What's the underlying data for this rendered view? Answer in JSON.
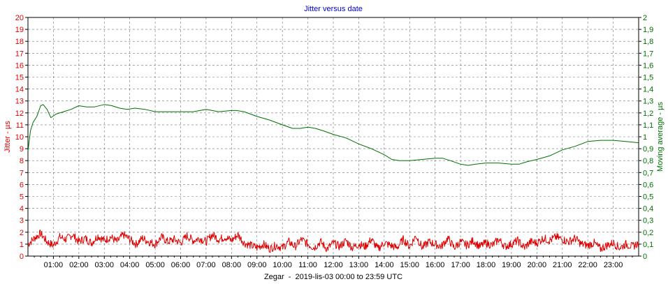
{
  "chart_data": {
    "type": "line",
    "title": "Jitter versus date",
    "xlabel": "Zegar  -  2019-lis-03 00:00 to 23:59 UTC",
    "ylabel_left": "Jitter - µs",
    "ylabel_right": "Moving average - µs",
    "x_ticks": [
      "01:00",
      "02:00",
      "03:00",
      "04:00",
      "05:00",
      "06:00",
      "07:00",
      "08:00",
      "09:00",
      "10:00",
      "11:00",
      "12:00",
      "13:00",
      "14:00",
      "15:00",
      "16:00",
      "17:00",
      "18:00",
      "19:00",
      "20:00",
      "21:00",
      "22:00",
      "23:00"
    ],
    "xlim_hours": [
      0,
      24
    ],
    "ylim_left": [
      0,
      20
    ],
    "ylim_right": [
      0,
      2
    ],
    "y_ticks_left": [
      "0",
      "1",
      "2",
      "3",
      "4",
      "5",
      "6",
      "7",
      "8",
      "9",
      "10",
      "11",
      "12",
      "13",
      "14",
      "15",
      "16",
      "17",
      "18",
      "19",
      "20"
    ],
    "y_ticks_right": [
      "0",
      "0,1",
      "0,2",
      "0,3",
      "0,4",
      "0,5",
      "0,6",
      "0,7",
      "0,8",
      "0,9",
      "1",
      "1,1",
      "1,2",
      "1,3",
      "1,4",
      "1,5",
      "1,6",
      "1,7",
      "1,8",
      "1,9",
      "2"
    ],
    "grid": true,
    "series": [
      {
        "name": "Jitter - µs",
        "axis": "left",
        "color": "#dd0000",
        "x_hours": [
          0,
          0.25,
          0.5,
          0.75,
          1,
          1.25,
          1.5,
          1.75,
          2,
          2.25,
          2.5,
          2.75,
          3,
          3.25,
          3.5,
          3.75,
          4,
          4.25,
          4.5,
          4.75,
          5,
          5.25,
          5.5,
          5.75,
          6,
          6.25,
          6.5,
          6.75,
          7,
          7.25,
          7.5,
          7.75,
          8,
          8.25,
          8.5,
          8.75,
          9,
          9.25,
          9.5,
          9.75,
          10,
          10.25,
          10.5,
          10.75,
          11,
          11.25,
          11.5,
          11.75,
          12,
          12.25,
          12.5,
          12.75,
          13,
          13.25,
          13.5,
          13.75,
          14,
          14.25,
          14.5,
          14.75,
          15,
          15.25,
          15.5,
          15.75,
          16,
          16.25,
          16.5,
          16.75,
          17,
          17.25,
          17.5,
          17.75,
          18,
          18.25,
          18.5,
          18.75,
          19,
          19.25,
          19.5,
          19.75,
          20,
          20.25,
          20.5,
          20.75,
          21,
          21.25,
          21.5,
          21.75,
          22,
          22.25,
          22.5,
          22.75,
          23,
          23.25,
          23.5,
          23.75,
          24
        ],
        "values": [
          1.0,
          1.5,
          1.9,
          1.2,
          0.9,
          1.6,
          1.4,
          1.8,
          1.2,
          1.5,
          1.1,
          1.7,
          1.3,
          1.6,
          1.2,
          1.8,
          1.4,
          1.0,
          1.5,
          1.2,
          1.0,
          1.6,
          1.2,
          1.4,
          1.1,
          1.7,
          1.3,
          1.5,
          1.2,
          1.8,
          1.4,
          1.6,
          1.3,
          1.8,
          1.1,
          0.9,
          0.7,
          1.0,
          0.6,
          0.9,
          0.7,
          1.2,
          0.8,
          1.4,
          1.0,
          0.7,
          1.2,
          0.6,
          1.1,
          0.8,
          1.3,
          0.7,
          1.0,
          0.8,
          1.4,
          0.6,
          1.1,
          0.9,
          0.7,
          1.4,
          0.8,
          1.7,
          0.7,
          1.2,
          1.0,
          0.8,
          1.5,
          0.7,
          1.2,
          0.9,
          1.3,
          0.8,
          1.1,
          0.9,
          1.4,
          0.8,
          1.0,
          1.3,
          0.7,
          1.2,
          1.1,
          1.5,
          1.3,
          1.6,
          1.4,
          1.2,
          1.5,
          1.0,
          0.9,
          1.1,
          0.6,
          0.9,
          1.1,
          0.7,
          1.0,
          0.8,
          1.1
        ]
      },
      {
        "name": "Moving average - µs",
        "axis": "right",
        "color": "#007000",
        "x_hours": [
          0,
          0.1,
          0.2,
          0.35,
          0.5,
          0.6,
          0.75,
          0.9,
          1.1,
          1.4,
          1.7,
          2.0,
          2.3,
          2.6,
          3.0,
          3.3,
          3.6,
          3.9,
          4.2,
          4.6,
          5.0,
          5.5,
          6.0,
          6.5,
          7.0,
          7.5,
          8.0,
          8.2,
          8.5,
          9.0,
          9.5,
          10.0,
          10.4,
          10.7,
          11.0,
          11.3,
          11.6,
          12.0,
          12.5,
          13.0,
          13.5,
          14.0,
          14.3,
          14.6,
          15.0,
          15.5,
          16.0,
          16.3,
          16.6,
          17.0,
          17.3,
          17.6,
          18.0,
          18.5,
          19.0,
          19.3,
          19.6,
          20.0,
          20.5,
          21.0,
          21.5,
          22.0,
          22.5,
          23.0,
          23.5,
          24.0
        ],
        "values": [
          0.88,
          1.05,
          1.12,
          1.17,
          1.26,
          1.27,
          1.23,
          1.16,
          1.19,
          1.21,
          1.23,
          1.26,
          1.25,
          1.25,
          1.27,
          1.26,
          1.24,
          1.23,
          1.24,
          1.23,
          1.21,
          1.21,
          1.21,
          1.21,
          1.23,
          1.21,
          1.22,
          1.22,
          1.21,
          1.17,
          1.14,
          1.1,
          1.07,
          1.07,
          1.08,
          1.07,
          1.05,
          1.02,
          0.99,
          0.94,
          0.9,
          0.85,
          0.81,
          0.8,
          0.8,
          0.81,
          0.82,
          0.82,
          0.8,
          0.77,
          0.76,
          0.77,
          0.78,
          0.78,
          0.77,
          0.77,
          0.79,
          0.81,
          0.84,
          0.89,
          0.92,
          0.96,
          0.97,
          0.97,
          0.96,
          0.95
        ]
      }
    ]
  }
}
